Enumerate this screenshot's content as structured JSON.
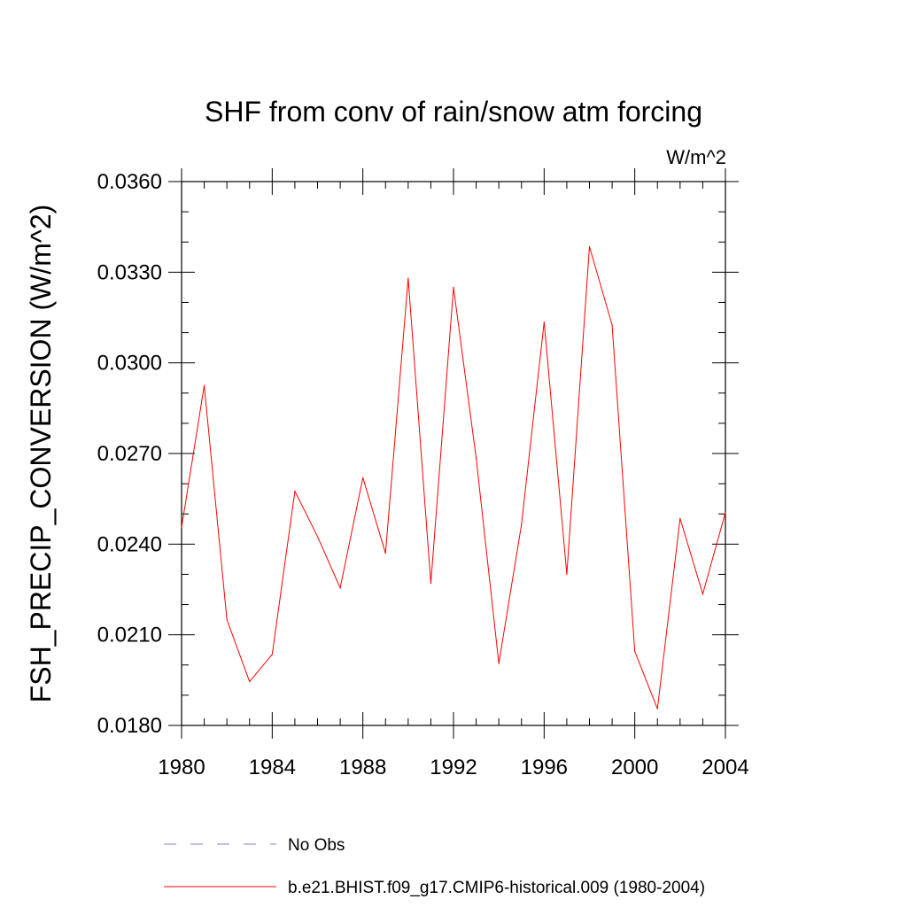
{
  "chart_data": {
    "type": "line",
    "title": "SHF from conv of rain/snow atm forcing",
    "units_label": "W/m^2",
    "xlabel": "",
    "ylabel": "FSH_PRECIP_CONVERSION  (W/m^2)",
    "xlim": [
      1980,
      2004
    ],
    "ylim": [
      0.018,
      0.036
    ],
    "x_ticks": [
      1980,
      1984,
      1988,
      1992,
      1996,
      2000,
      2004
    ],
    "x_tick_labels": [
      "1980",
      "1984",
      "1988",
      "1992",
      "1996",
      "2000",
      "2004"
    ],
    "y_ticks": [
      0.018,
      0.021,
      0.024,
      0.027,
      0.03,
      0.033,
      0.036
    ],
    "y_tick_labels": [
      "0.0180",
      "0.0210",
      "0.0240",
      "0.0270",
      "0.0300",
      "0.0330",
      "0.0360"
    ],
    "grid": false,
    "legend_position": "bottom",
    "series": [
      {
        "name": "b.e21.BHIST.f09_g17.CMIP6-historical.009 (1980-2004)",
        "color": "#ff0000",
        "style": "solid",
        "x": [
          1980,
          1981,
          1982,
          1983,
          1984,
          1985,
          1986,
          1987,
          1988,
          1989,
          1990,
          1991,
          1992,
          1993,
          1994,
          1995,
          1996,
          1997,
          1998,
          1999,
          2000,
          2001,
          2002,
          2003,
          2004
        ],
        "values": [
          0.02455,
          0.02925,
          0.0215,
          0.01945,
          0.02035,
          0.02575,
          0.02425,
          0.02255,
          0.0262,
          0.0237,
          0.0328,
          0.0227,
          0.0325,
          0.02685,
          0.02005,
          0.02465,
          0.03135,
          0.023,
          0.03385,
          0.03125,
          0.02045,
          0.01855,
          0.02485,
          0.02235,
          0.02505
        ]
      },
      {
        "name": "No Obs",
        "color": "#8080c0",
        "style": "dashed",
        "x": [],
        "values": []
      }
    ]
  }
}
